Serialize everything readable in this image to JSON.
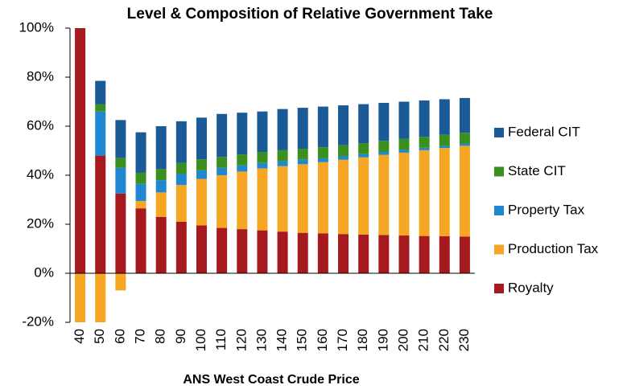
{
  "chart_data": {
    "type": "stacked_bar",
    "title": "Level & Composition of Relative Government Take",
    "x_label": "ANS West Coast Crude Price",
    "categories": [
      "40",
      "50",
      "60",
      "70",
      "80",
      "90",
      "100",
      "110",
      "120",
      "130",
      "140",
      "150",
      "160",
      "170",
      "180",
      "190",
      "200",
      "210",
      "220",
      "230"
    ],
    "series": [
      {
        "name": "Royalty",
        "color": "#a6191e",
        "values": [
          100,
          48,
          32.5,
          26.5,
          23,
          21,
          19.5,
          18.5,
          18,
          17.5,
          17,
          16.5,
          16.3,
          16,
          15.8,
          15.6,
          15.4,
          15.2,
          15.1,
          15
        ]
      },
      {
        "name": "Production Tax",
        "color": "#f5a623",
        "values": [
          -21,
          -21,
          -7,
          3,
          10,
          15,
          19,
          21.5,
          23.5,
          25.3,
          26.7,
          28,
          29,
          30.3,
          31.5,
          32.7,
          33.8,
          35,
          36,
          37
        ]
      },
      {
        "name": "Property Tax",
        "color": "#1f88d0",
        "values": [
          0,
          18,
          10.5,
          7,
          5,
          4.5,
          3.5,
          3,
          2.5,
          2.2,
          2,
          1.8,
          1.6,
          1.4,
          1.3,
          1.2,
          1.1,
          1,
          0.9,
          0.8
        ]
      },
      {
        "name": "State CIT",
        "color": "#3a8f1f",
        "values": [
          0,
          3,
          4,
          4.5,
          4.5,
          4.5,
          4.5,
          4.5,
          4.5,
          4.5,
          4.5,
          4.5,
          4.5,
          4.5,
          4.5,
          4.5,
          4.5,
          4.5,
          4.5,
          4.5
        ]
      },
      {
        "name": "Federal CIT",
        "color": "#1a5a96",
        "values": [
          0,
          9.5,
          15.5,
          16.5,
          17.5,
          17,
          17,
          17.5,
          17,
          16.5,
          16.8,
          16.7,
          16.6,
          16.3,
          15.9,
          15.5,
          15.2,
          14.8,
          14.5,
          14.2
        ]
      }
    ],
    "ylim": [
      -20,
      100
    ],
    "yticks": [
      {
        "value": -20,
        "label": "-20%"
      },
      {
        "value": 0,
        "label": "0%"
      },
      {
        "value": 20,
        "label": "20%"
      },
      {
        "value": 40,
        "label": "40%"
      },
      {
        "value": 60,
        "label": "60%"
      },
      {
        "value": 80,
        "label": "80%"
      },
      {
        "value": 100,
        "label": "100%"
      }
    ],
    "legend": "right"
  }
}
